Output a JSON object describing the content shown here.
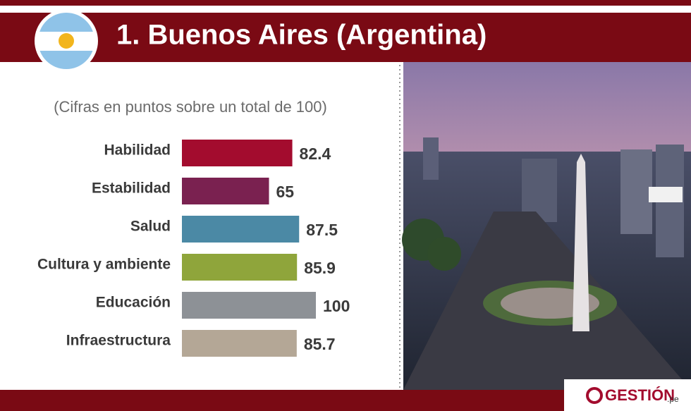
{
  "chart_data": {
    "type": "hbar",
    "title": "1. Buenos Aires (Argentina)",
    "subtitle": "(Cifras en puntos sobre un total de 100)",
    "categories": [
      "Habilidad",
      "Estabilidad",
      "Salud",
      "Cultura y ambiente",
      "Educación",
      "Infraestructura"
    ],
    "values": [
      82.4,
      65,
      87.5,
      85.9,
      100,
      85.7
    ],
    "colors": [
      "#a30c2e",
      "#7a2150",
      "#4b89a5",
      "#8fa53b",
      "#8d9196",
      "#b4a796"
    ],
    "xlim": [
      0,
      100
    ]
  },
  "logo": {
    "name": "GESTIÓN",
    "suffix": ".pe"
  }
}
